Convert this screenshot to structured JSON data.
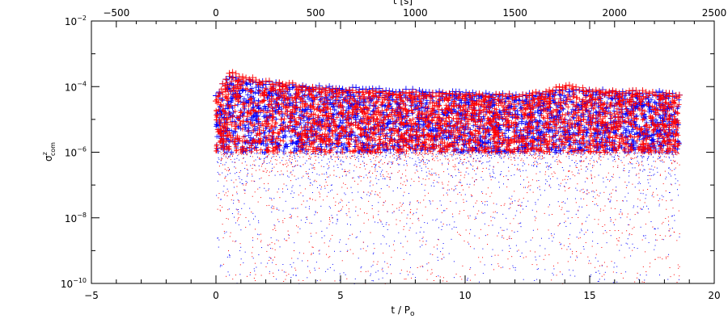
{
  "chart_data": {
    "type": "scatter",
    "title": "",
    "xlabel": "t / P",
    "xlabel_sub": "o",
    "ylabel": "σ",
    "ylabel_sup": "z",
    "ylabel_sub": "com",
    "top_xlabel": "t [s]",
    "x_range": [
      -5,
      20
    ],
    "top_x_range": [
      -625,
      2500
    ],
    "y_range": [
      1e-10,
      0.01
    ],
    "yscale": "log",
    "grid": false,
    "legend": "none",
    "x_ticks": [
      "−5",
      "0",
      "5",
      "10",
      "15",
      "20"
    ],
    "x_tick_values": [
      -5,
      0,
      5,
      10,
      15,
      20
    ],
    "top_x_ticks": [
      "−500",
      "0",
      "500",
      "1000",
      "1500",
      "2000",
      "2500"
    ],
    "top_x_tick_values": [
      -500,
      0,
      500,
      1000,
      1500,
      2000,
      2500
    ],
    "y_ticks": [
      {
        "base": "10",
        "exp": "−2",
        "value": 0.01
      },
      {
        "base": "10",
        "exp": "−4",
        "value": 0.0001
      },
      {
        "base": "10",
        "exp": "−6",
        "value": 1e-06
      },
      {
        "base": "10",
        "exp": "−8",
        "value": 1e-08
      },
      {
        "base": "10",
        "exp": "−10",
        "value": 1e-10
      }
    ],
    "colors": {
      "series_a": "#ff0000",
      "series_b": "#0000ff",
      "axis": "#000000"
    },
    "series": [
      {
        "color": "#0000ff",
        "markers": "plus and dot",
        "x": [
          0,
          0.5,
          1,
          2,
          3,
          4,
          5,
          6,
          7,
          8,
          9,
          10,
          11,
          12,
          13,
          14,
          15,
          16,
          17,
          18,
          18.6
        ],
        "y_upper": [
          5e-05,
          0.0002,
          0.00015,
          0.00012,
          0.0001,
          9e-05,
          8e-05,
          8e-05,
          7e-05,
          7e-05,
          6e-05,
          6e-05,
          5.5e-05,
          5e-05,
          6e-05,
          7e-05,
          7e-05,
          6.5e-05,
          6e-05,
          6e-05,
          5e-05
        ],
        "y_lower": [
          1e-06,
          1e-06,
          1e-06,
          1e-06,
          1e-06,
          1e-06,
          1e-06,
          1e-06,
          1e-06,
          1e-06,
          1e-06,
          1e-06,
          1e-06,
          1e-06,
          1e-06,
          1e-06,
          1e-06,
          1e-06,
          1e-06,
          1e-06,
          1e-06
        ],
        "scatter_floor": 1e-10
      },
      {
        "color": "#ff0000",
        "markers": "plus and dot",
        "x": [
          0,
          0.5,
          1,
          2,
          3,
          4,
          5,
          6,
          7,
          8,
          9,
          10,
          11,
          12,
          13,
          14,
          15,
          16,
          17,
          18,
          18.6
        ],
        "y_upper": [
          4e-05,
          0.00025,
          0.0002,
          0.00013,
          0.00011,
          8e-05,
          7e-05,
          7e-05,
          6e-05,
          6e-05,
          5.5e-05,
          5.5e-05,
          5e-05,
          5e-05,
          6e-05,
          0.0001,
          7e-05,
          7e-05,
          6.5e-05,
          5.5e-05,
          5e-05
        ],
        "y_lower": [
          1e-06,
          1e-06,
          1e-06,
          1e-06,
          1e-06,
          1e-06,
          1e-06,
          1e-06,
          1e-06,
          1e-06,
          1e-06,
          1e-06,
          1e-06,
          1e-06,
          1e-06,
          1e-06,
          1e-06,
          1e-06,
          1e-06,
          1e-06,
          1e-06
        ],
        "scatter_floor": 1e-10
      }
    ]
  }
}
